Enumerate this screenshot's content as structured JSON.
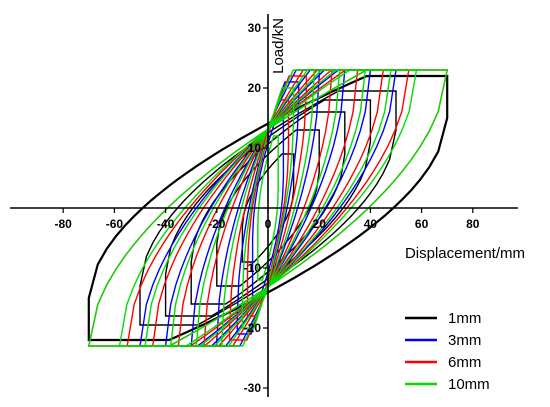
{
  "chart_data": {
    "type": "line",
    "title": "",
    "xlabel": "Displacement/mm",
    "ylabel": "Load/kN",
    "xlim": [
      -90,
      90
    ],
    "ylim": [
      -30,
      30
    ],
    "x_ticks": [
      -80,
      -60,
      -40,
      -20,
      0,
      20,
      40,
      60,
      80
    ],
    "y_ticks": [
      -30,
      -20,
      -10,
      0,
      10,
      20,
      30
    ],
    "grid": false,
    "legend_position": "bottom-right",
    "series": [
      {
        "name": "1mm",
        "color": "#000000",
        "loops": [
          {
            "amp": 10,
            "peak": 9,
            "residual": 3
          },
          {
            "amp": 20,
            "peak": 13,
            "residual": 6
          },
          {
            "amp": 30,
            "peak": 16,
            "residual": 9
          },
          {
            "amp": 40,
            "peak": 18,
            "residual": 11
          },
          {
            "amp": 50,
            "peak": 19.5,
            "residual": 13
          },
          {
            "amp": 70,
            "peak": 22,
            "residual": 15
          }
        ]
      },
      {
        "name": "3mm",
        "color": "#0000ff",
        "loops": [
          {
            "amp": 6,
            "peak": 15,
            "residual": 5
          },
          {
            "amp": 12,
            "peak": 21,
            "residual": 18
          },
          {
            "amp": 20,
            "peak": 23,
            "residual": 22
          },
          {
            "amp": 30,
            "peak": 23,
            "residual": 23
          },
          {
            "amp": 40,
            "peak": 23,
            "residual": 23
          },
          {
            "amp": 50,
            "peak": 23,
            "residual": 23
          }
        ]
      },
      {
        "name": "6mm",
        "color": "#ff0000",
        "loops": [
          {
            "amp": 8,
            "peak": 18,
            "residual": 10
          },
          {
            "amp": 15,
            "peak": 22,
            "residual": 20
          },
          {
            "amp": 25,
            "peak": 23,
            "residual": 23
          },
          {
            "amp": 35,
            "peak": 23,
            "residual": 23
          },
          {
            "amp": 45,
            "peak": 23,
            "residual": 23
          },
          {
            "amp": 55,
            "peak": 23,
            "residual": 23
          },
          {
            "amp": 70,
            "peak": 23,
            "residual": 23
          }
        ]
      },
      {
        "name": "10mm",
        "color": "#00dd00",
        "loops": [
          {
            "amp": 4,
            "peak": 12,
            "residual": 3
          },
          {
            "amp": 10,
            "peak": 20,
            "residual": 15
          },
          {
            "amp": 18,
            "peak": 23,
            "residual": 22
          },
          {
            "amp": 28,
            "peak": 23,
            "residual": 23
          },
          {
            "amp": 38,
            "peak": 23,
            "residual": 23
          },
          {
            "amp": 48,
            "peak": 23,
            "residual": 23
          },
          {
            "amp": 58,
            "peak": 23,
            "residual": 23
          },
          {
            "amp": 70,
            "peak": 23,
            "residual": 23
          }
        ]
      }
    ]
  }
}
